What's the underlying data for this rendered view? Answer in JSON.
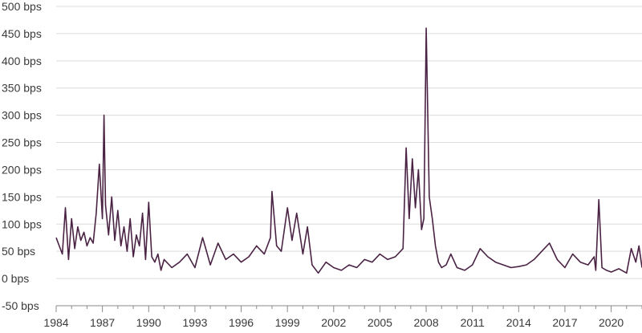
{
  "chart_data": {
    "type": "line",
    "title": "",
    "xlabel": "",
    "ylabel": "",
    "grid": "horizontal",
    "legend": "none",
    "xlim": [
      1984,
      2022
    ],
    "ylim": [
      -50,
      500
    ],
    "y_ticks": [
      -50,
      0,
      50,
      100,
      150,
      200,
      250,
      300,
      350,
      400,
      450,
      500
    ],
    "y_tick_labels": [
      "-50 bps",
      "0 bps",
      "50 bps",
      "100 bps",
      "150 bps",
      "200 bps",
      "250 bps",
      "300 bps",
      "350 bps",
      "400 bps",
      "450 bps",
      "500 bps"
    ],
    "x_ticks": [
      1984,
      1987,
      1990,
      1993,
      1996,
      1999,
      2002,
      2005,
      2008,
      2011,
      2014,
      2017,
      2020
    ],
    "x_tick_labels": [
      "1984",
      "1987",
      "1990",
      "1993",
      "1996",
      "1999",
      "2002",
      "2005",
      "2008",
      "2011",
      "2014",
      "2017",
      "2020"
    ],
    "series": [
      {
        "color": "#4a2344",
        "x": [
          1984.0,
          1984.2,
          1984.4,
          1984.6,
          1984.8,
          1985.0,
          1985.2,
          1985.4,
          1985.6,
          1985.8,
          1986.0,
          1986.2,
          1986.4,
          1986.6,
          1986.8,
          1987.0,
          1987.1,
          1987.2,
          1987.4,
          1987.6,
          1987.8,
          1988.0,
          1988.2,
          1988.4,
          1988.6,
          1988.8,
          1989.0,
          1989.2,
          1989.4,
          1989.6,
          1989.8,
          1990.0,
          1990.2,
          1990.4,
          1990.6,
          1990.8,
          1991.0,
          1991.5,
          1992.0,
          1992.5,
          1993.0,
          1993.5,
          1994.0,
          1994.5,
          1995.0,
          1995.5,
          1996.0,
          1996.5,
          1997.0,
          1997.5,
          1997.9,
          1998.0,
          1998.3,
          1998.6,
          1999.0,
          1999.3,
          1999.6,
          2000.0,
          2000.3,
          2000.6,
          2001.0,
          2001.5,
          2002.0,
          2002.5,
          2003.0,
          2003.5,
          2004.0,
          2004.5,
          2005.0,
          2005.5,
          2006.0,
          2006.5,
          2006.7,
          2006.9,
          2007.1,
          2007.3,
          2007.5,
          2007.7,
          2007.85,
          2008.0,
          2008.2,
          2008.4,
          2008.6,
          2008.8,
          2009.0,
          2009.3,
          2009.6,
          2010.0,
          2010.5,
          2011.0,
          2011.5,
          2012.0,
          2012.5,
          2013.0,
          2013.5,
          2014.0,
          2014.5,
          2015.0,
          2015.5,
          2016.0,
          2016.5,
          2017.0,
          2017.5,
          2018.0,
          2018.5,
          2018.9,
          2019.0,
          2019.2,
          2019.4,
          2019.7,
          2020.0,
          2020.5,
          2021.0,
          2021.3,
          2021.6,
          2021.8,
          2022.0
        ],
        "values": [
          75,
          60,
          45,
          130,
          35,
          110,
          55,
          95,
          70,
          85,
          60,
          75,
          65,
          120,
          210,
          110,
          300,
          135,
          80,
          150,
          70,
          125,
          60,
          95,
          50,
          110,
          40,
          80,
          60,
          120,
          35,
          140,
          40,
          30,
          45,
          15,
          35,
          20,
          30,
          45,
          20,
          75,
          25,
          65,
          35,
          45,
          30,
          40,
          60,
          45,
          75,
          160,
          60,
          50,
          130,
          70,
          120,
          45,
          95,
          25,
          10,
          30,
          20,
          15,
          25,
          20,
          35,
          30,
          45,
          35,
          40,
          55,
          240,
          110,
          220,
          130,
          200,
          90,
          110,
          460,
          150,
          110,
          60,
          30,
          20,
          25,
          45,
          20,
          15,
          25,
          55,
          40,
          30,
          25,
          20,
          22,
          25,
          35,
          50,
          65,
          35,
          20,
          45,
          30,
          25,
          40,
          15,
          145,
          20,
          15,
          12,
          18,
          10,
          55,
          30,
          60,
          20
        ]
      }
    ]
  }
}
